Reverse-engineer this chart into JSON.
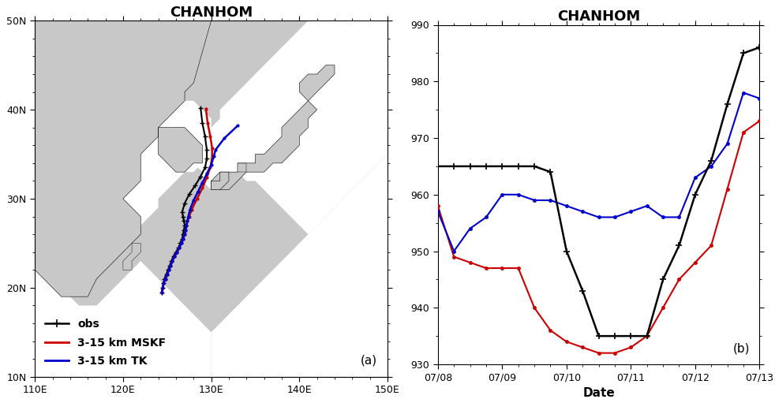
{
  "title": "CHANHOM",
  "panel_a_label": "(a)",
  "panel_b_label": "(b)",
  "map_xlim": [
    110,
    150
  ],
  "map_ylim": [
    10,
    50
  ],
  "map_xticks": [
    110,
    120,
    130,
    140,
    150
  ],
  "map_yticks": [
    10,
    20,
    30,
    40,
    50
  ],
  "map_xlabel_labels": [
    "110E",
    "120E",
    "130E",
    "140E",
    "150E"
  ],
  "map_ylabel_labels": [
    "10N",
    "20N",
    "30N",
    "40N",
    "50N"
  ],
  "obs_track_lon": [
    124.4,
    124.5,
    124.6,
    124.7,
    124.9,
    125.1,
    125.3,
    125.5,
    125.7,
    126.0,
    126.3,
    126.5,
    126.7,
    126.8,
    126.9,
    127.0,
    126.9,
    126.8,
    126.7,
    127.0,
    127.5,
    128.2,
    128.8,
    129.3,
    129.5,
    129.5,
    129.3,
    129.0,
    128.8
  ],
  "obs_track_lat": [
    19.5,
    20.0,
    20.5,
    21.0,
    21.5,
    22.0,
    22.5,
    23.0,
    23.5,
    24.0,
    24.5,
    25.0,
    25.5,
    26.0,
    26.5,
    27.0,
    27.5,
    28.0,
    28.5,
    29.5,
    30.5,
    31.5,
    32.5,
    33.5,
    34.5,
    35.5,
    37.0,
    38.5,
    40.2
  ],
  "mskf_track_lon": [
    124.4,
    124.5,
    124.6,
    124.8,
    125.0,
    125.2,
    125.4,
    125.6,
    125.8,
    126.1,
    126.4,
    126.6,
    126.8,
    127.0,
    127.1,
    127.2,
    127.3,
    127.5,
    127.8,
    128.4,
    129.0,
    129.5,
    129.9,
    130.1,
    130.1,
    129.9,
    129.6,
    129.4
  ],
  "mskf_track_lat": [
    19.5,
    20.0,
    20.5,
    21.0,
    21.5,
    22.0,
    22.5,
    23.0,
    23.5,
    24.0,
    24.5,
    25.0,
    25.5,
    26.0,
    26.5,
    27.0,
    27.5,
    28.0,
    28.8,
    30.0,
    31.2,
    32.4,
    33.5,
    34.6,
    35.7,
    37.0,
    38.5,
    40.1
  ],
  "tk_track_lon": [
    124.4,
    124.5,
    124.6,
    124.8,
    125.0,
    125.2,
    125.4,
    125.6,
    125.8,
    126.1,
    126.4,
    126.6,
    126.8,
    127.0,
    127.1,
    127.2,
    127.3,
    127.4,
    127.6,
    128.0,
    128.5,
    129.0,
    129.5,
    130.0,
    130.3,
    130.5,
    131.5,
    133.0
  ],
  "tk_track_lat": [
    19.5,
    20.0,
    20.5,
    21.0,
    21.5,
    22.0,
    22.5,
    23.0,
    23.5,
    24.0,
    24.5,
    25.0,
    25.5,
    26.0,
    26.5,
    27.0,
    27.5,
    28.0,
    28.8,
    29.8,
    30.8,
    31.8,
    32.8,
    33.8,
    34.8,
    35.5,
    36.8,
    38.2
  ],
  "mslp_dates_obs": [
    0,
    0.25,
    0.5,
    0.75,
    1.0,
    1.25,
    1.5,
    1.75,
    2.0,
    2.25,
    2.5,
    2.75,
    3.0,
    3.25,
    3.5,
    3.75,
    4.0,
    4.25,
    4.5,
    4.75,
    5.0
  ],
  "mslp_obs": [
    965,
    965,
    965,
    965,
    965,
    965,
    965,
    964,
    950,
    943,
    935,
    935,
    935,
    935,
    945,
    951,
    960,
    966,
    976,
    985,
    986
  ],
  "mslp_dates_mskf": [
    0,
    0.25,
    0.5,
    0.75,
    1.0,
    1.25,
    1.5,
    1.75,
    2.0,
    2.25,
    2.5,
    2.75,
    3.0,
    3.25,
    3.5,
    3.75,
    4.0,
    4.25,
    4.5,
    4.75,
    5.0
  ],
  "mslp_mskf": [
    958,
    949,
    948,
    947,
    947,
    947,
    940,
    936,
    934,
    933,
    932,
    932,
    933,
    935,
    940,
    945,
    948,
    951,
    961,
    971,
    973
  ],
  "mslp_dates_tk": [
    0,
    0.25,
    0.5,
    0.75,
    1.0,
    1.25,
    1.5,
    1.75,
    2.0,
    2.25,
    2.5,
    2.75,
    3.0,
    3.25,
    3.5,
    3.75,
    4.0,
    4.25,
    4.5,
    4.75,
    5.0
  ],
  "mslp_tk": [
    957,
    950,
    954,
    956,
    960,
    960,
    959,
    959,
    958,
    957,
    956,
    956,
    957,
    958,
    956,
    956,
    963,
    965,
    969,
    978,
    977
  ],
  "mslp_ylim": [
    930,
    990
  ],
  "mslp_yticks": [
    930,
    940,
    950,
    960,
    970,
    980,
    990
  ],
  "mslp_date_ticks": [
    0,
    1,
    2,
    3,
    4,
    5
  ],
  "mslp_date_labels": [
    "07/08",
    "07/09",
    "07/10",
    "07/11",
    "07/12",
    "07/13"
  ],
  "obs_color": "#000000",
  "mskf_color": "#cc0000",
  "tk_color": "#0000cc",
  "land_color": "#c8c8c8",
  "ocean_color": "#ffffff",
  "legend_obs": "obs",
  "legend_mskf": "3-15 km MSKF",
  "legend_tk": "3-15 km TK"
}
